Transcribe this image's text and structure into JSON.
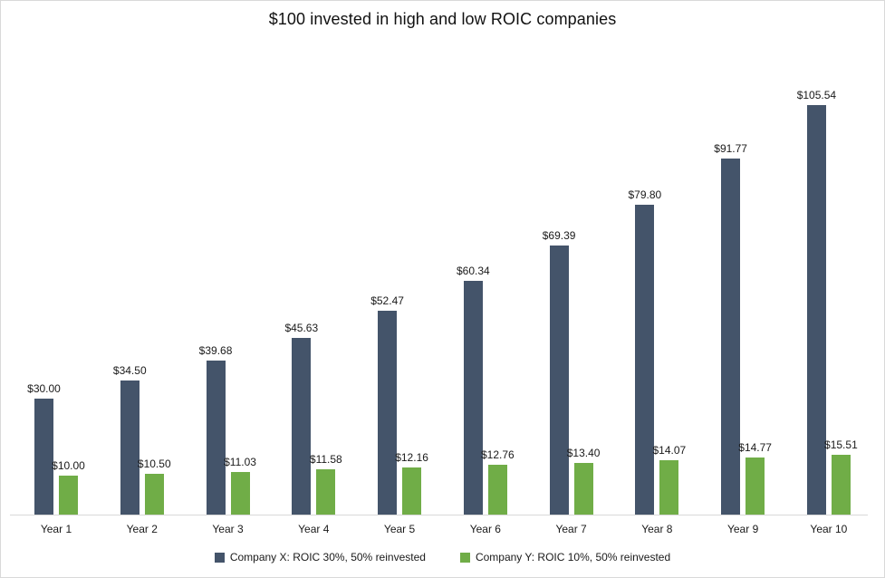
{
  "chart_data": {
    "type": "bar",
    "title": "$100 invested in high and low ROIC companies",
    "categories": [
      "Year 1",
      "Year 2",
      "Year 3",
      "Year 4",
      "Year 5",
      "Year 6",
      "Year 7",
      "Year 8",
      "Year 9",
      "Year 10"
    ],
    "series": [
      {
        "key": "company-x",
        "name": "Company X: ROIC 30%, 50% reinvested",
        "color": "#44546A",
        "values": [
          30.0,
          34.5,
          39.68,
          45.63,
          52.47,
          60.34,
          69.39,
          79.8,
          91.77,
          105.54
        ],
        "labels": [
          "$30.00",
          "$34.50",
          "$39.68",
          "$45.63",
          "$52.47",
          "$60.34",
          "$69.39",
          "$79.80",
          "$91.77",
          "$105.54"
        ]
      },
      {
        "key": "company-y",
        "name": "Company Y: ROIC 10%, 50% reinvested",
        "color": "#70AD47",
        "values": [
          10.0,
          10.5,
          11.03,
          11.58,
          12.16,
          12.76,
          13.4,
          14.07,
          14.77,
          15.51
        ],
        "labels": [
          "$10.00",
          "$10.50",
          "$11.03",
          "$11.58",
          "$12.16",
          "$12.76",
          "$13.40",
          "$14.07",
          "$14.77",
          "$15.51"
        ]
      }
    ],
    "ylim": [
      0,
      110
    ],
    "grid": false,
    "y_axis_visible": false,
    "data_labels": "outside-end",
    "legend_position": "bottom",
    "axis_line_color": "#D9D9D9"
  }
}
